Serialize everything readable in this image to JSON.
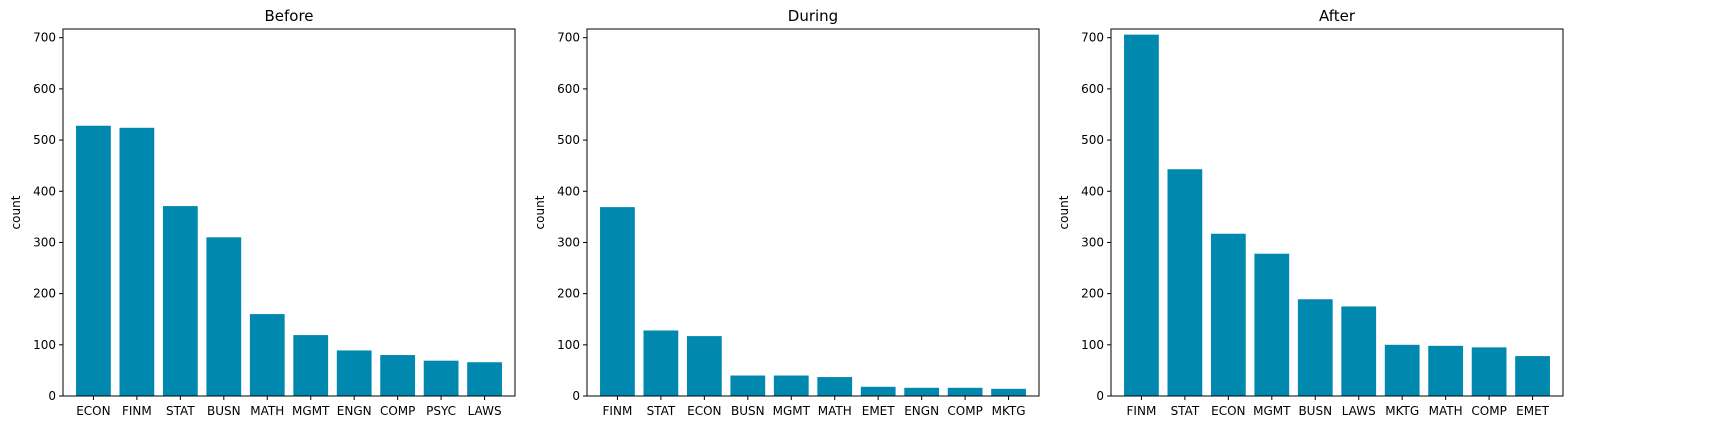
{
  "chart_data": [
    {
      "type": "bar",
      "title": "Before",
      "xlabel": "",
      "ylabel": "count",
      "ylim": [
        0,
        717
      ],
      "yticks": [
        0,
        100,
        200,
        300,
        400,
        500,
        600,
        700
      ],
      "grid": false,
      "color": "#0088AF",
      "categories": [
        "ECON",
        "FINM",
        "STAT",
        "BUSN",
        "MATH",
        "MGMT",
        "ENGN",
        "COMP",
        "PSYC",
        "LAWS"
      ],
      "values": [
        528,
        524,
        371,
        310,
        160,
        119,
        89,
        80,
        69,
        66
      ]
    },
    {
      "type": "bar",
      "title": "During",
      "xlabel": "",
      "ylabel": "count",
      "ylim": [
        0,
        717
      ],
      "yticks": [
        0,
        100,
        200,
        300,
        400,
        500,
        600,
        700
      ],
      "grid": false,
      "color": "#0088AF",
      "categories": [
        "FINM",
        "STAT",
        "ECON",
        "BUSN",
        "MGMT",
        "MATH",
        "EMET",
        "ENGN",
        "COMP",
        "MKTG"
      ],
      "values": [
        369,
        128,
        117,
        40,
        40,
        37,
        18,
        16,
        16,
        14
      ]
    },
    {
      "type": "bar",
      "title": "After",
      "xlabel": "",
      "ylabel": "count",
      "ylim": [
        0,
        717
      ],
      "yticks": [
        0,
        100,
        200,
        300,
        400,
        500,
        600,
        700
      ],
      "grid": false,
      "color": "#0088AF",
      "categories": [
        "FINM",
        "STAT",
        "ECON",
        "MGMT",
        "BUSN",
        "LAWS",
        "MKTG",
        "MATH",
        "COMP",
        "EMET"
      ],
      "values": [
        706,
        443,
        317,
        278,
        189,
        175,
        100,
        98,
        95,
        78
      ]
    }
  ]
}
